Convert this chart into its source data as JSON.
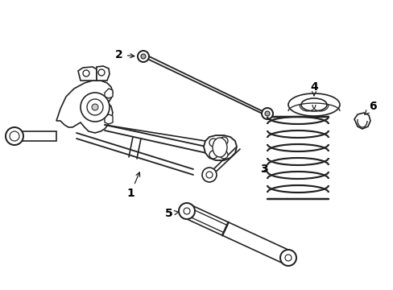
{
  "background_color": "#ffffff",
  "line_color": "#222222",
  "line_width": 1.2,
  "label_fontsize": 10,
  "label_color": "#000000",
  "figsize": [
    4.89,
    3.6
  ],
  "dpi": 100
}
